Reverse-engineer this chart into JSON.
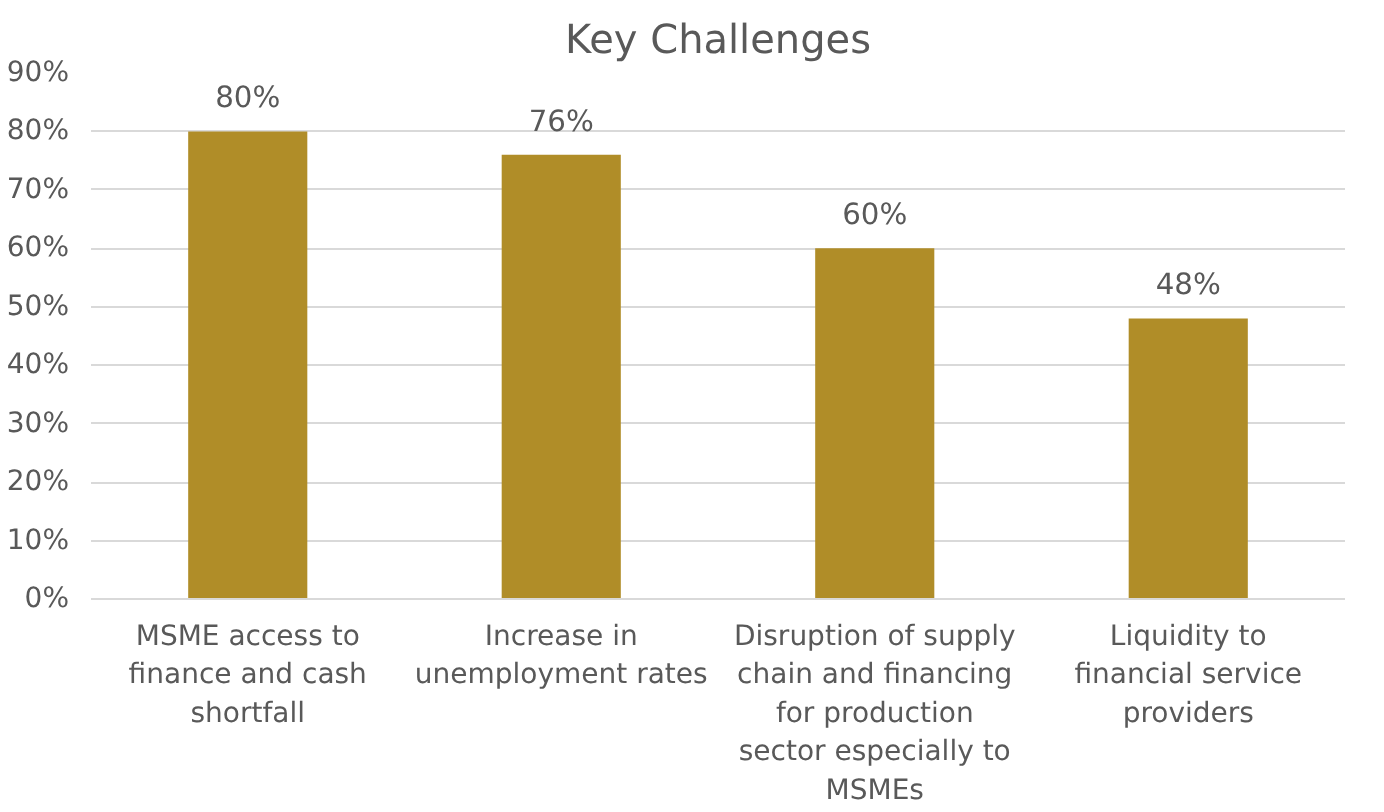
{
  "chart_data": {
    "type": "bar",
    "title": "Key Challenges",
    "categories": [
      "MSME access to finance and cash shortfall",
      "Increase in unemployment rates",
      "Disruption of supply chain and financing for production sector especially to MSMEs",
      "Liquidity to financial service providers"
    ],
    "values": [
      80,
      76,
      60,
      48
    ],
    "value_labels": [
      "80%",
      "76%",
      "60%",
      "48%"
    ],
    "color": "#b08d28",
    "ylim": [
      0,
      90
    ],
    "yticks": [
      {
        "value": 0,
        "label": "0%"
      },
      {
        "value": 10,
        "label": "10%"
      },
      {
        "value": 20,
        "label": "20%"
      },
      {
        "value": 30,
        "label": "30%"
      },
      {
        "value": 40,
        "label": "40%"
      },
      {
        "value": 50,
        "label": "50%"
      },
      {
        "value": 60,
        "label": "60%"
      },
      {
        "value": 70,
        "label": "70%"
      },
      {
        "value": 80,
        "label": "80%"
      },
      {
        "value": 90,
        "label": "90%"
      }
    ],
    "grid": "y"
  }
}
